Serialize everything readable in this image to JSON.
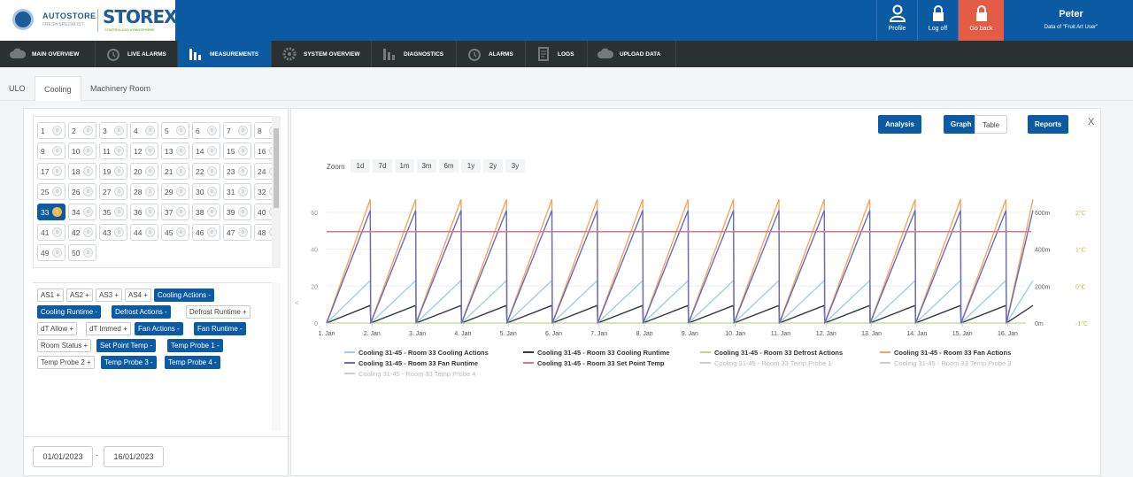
{
  "header": {
    "brand1": "AUTOSTORE",
    "brand1_sub": "FRESH SPEZIALIST",
    "brand2": "STOREX",
    "brand2_sub": "CONTROLLED ATMOSPHERE",
    "buttons": {
      "profile": "Profile",
      "logoff": "Log off",
      "goback": "Go back"
    },
    "user_name": "Peter",
    "user_data": "Data of \"Fruit Art User\"",
    "colors": {
      "primary": "#0b5aa2",
      "goback": "#e45c45",
      "nav": "#2b3132"
    }
  },
  "nav": {
    "items": [
      {
        "label": "MAIN OVERVIEW",
        "icon": "cloud-icon"
      },
      {
        "label": "LIVE ALARMS",
        "icon": "alarm-clock-icon"
      },
      {
        "label": "MEASUREMENTS",
        "icon": "bar-chart-icon",
        "active": true
      },
      {
        "label": "SYSTEM OVERVIEW",
        "icon": "gear-icon"
      },
      {
        "label": "DIAGNOSTICS",
        "icon": "bar-chart-icon"
      },
      {
        "label": "ALARMS",
        "icon": "alarm-clock-icon"
      },
      {
        "label": "LOGS",
        "icon": "document-icon"
      },
      {
        "label": "UPLOAD DATA",
        "icon": "cloud-upload-icon"
      }
    ]
  },
  "tabs": {
    "t0": "ULO",
    "t1": "Cooling",
    "t2": "Machinery Room",
    "active": "Cooling"
  },
  "rooms": {
    "visible": [
      "1",
      "2",
      "3",
      "4",
      "5",
      "6",
      "7",
      "8",
      "9",
      "10",
      "11",
      "12",
      "13",
      "14",
      "15",
      "16",
      "17",
      "18",
      "19",
      "20",
      "21",
      "22",
      "23",
      "24",
      "25",
      "26",
      "27",
      "28",
      "29",
      "30",
      "31",
      "32",
      "33",
      "34",
      "35",
      "36",
      "37",
      "38",
      "39",
      "40",
      "41",
      "42",
      "43",
      "44",
      "45",
      "46",
      "47",
      "48",
      "49",
      "50"
    ],
    "selected": "33",
    "indicator_text": "0"
  },
  "channels": [
    {
      "label": "AS1 +",
      "on": false
    },
    {
      "label": "AS2 +",
      "on": false
    },
    {
      "label": "AS3 +",
      "on": false
    },
    {
      "label": "AS4 +",
      "on": false
    },
    {
      "label": "Cooling Actions -",
      "on": true
    },
    {
      "label": "Cooling Runtime -",
      "on": true
    },
    {
      "label": "Defrost Actions -",
      "on": true
    },
    {
      "label": "Defrost Runtime +",
      "on": false
    },
    {
      "label": "dT Allow +",
      "on": false
    },
    {
      "label": "dT Immed +",
      "on": false
    },
    {
      "label": "Fan Actions -",
      "on": true
    },
    {
      "label": "Fan Runtime -",
      "on": true
    },
    {
      "label": "Room Status +",
      "on": false
    },
    {
      "label": "Set Point Temp -",
      "on": true
    },
    {
      "label": "Temp Probe 1 -",
      "on": true
    },
    {
      "label": "Temp Probe 2 +",
      "on": false
    },
    {
      "label": "Temp Probe 3 -",
      "on": true
    },
    {
      "label": "Temp Probe 4 -",
      "on": true
    }
  ],
  "dates": {
    "from": "01/01/2023",
    "sep": "-",
    "to": "16/01/2023"
  },
  "chart_controls": {
    "analysis": "Analysis",
    "graph": "Graph",
    "table": "Table",
    "reports": "Reports",
    "close": "X",
    "zoom_label": "Zoom",
    "zoom_options": [
      "1d",
      "7d",
      "1m",
      "3m",
      "6m",
      "1y",
      "2y",
      "3y"
    ],
    "collapse_arrow": "<"
  },
  "chart_data": {
    "type": "line",
    "x_labels": [
      "1. Jan",
      "2. Jan",
      "3. Jan",
      "4. Jan",
      "5. Jan",
      "6. Jan",
      "7. Jan",
      "8. Jan",
      "9. Jan",
      "10. Jan",
      "11. Jan",
      "12. Jan",
      "13. Jan",
      "14. Jan",
      "15. Jan",
      "16. Jan"
    ],
    "y_left": {
      "ticks": [
        "0",
        "20",
        "40",
        "60"
      ],
      "range": [
        0,
        70
      ]
    },
    "y_right_runtime": {
      "ticks": [
        "0m",
        "200m",
        "400m",
        "600m"
      ],
      "range": [
        0,
        700
      ]
    },
    "y_right_temp": {
      "ticks": [
        "-1°C",
        "0°C",
        "1°C",
        "2°C"
      ],
      "range": [
        -1,
        2.5
      ]
    },
    "cycle_days": 1,
    "series": [
      {
        "name": "Cooling 31-45 - Room 33 Cooling Actions",
        "color": "#9fd0e6",
        "peak": 23,
        "axis": "left",
        "visible": true
      },
      {
        "name": "Cooling 31-45 - Room 33 Cooling Runtime",
        "color": "#333a40",
        "peak": 95,
        "axis": "right_runtime",
        "visible": true
      },
      {
        "name": "Cooling 31-45 - Room 33 Defrost Actions",
        "color": "#b8d98a",
        "peak": 0,
        "axis": "left",
        "visible": true
      },
      {
        "name": "Cooling 31-45 - Room 33 Fan Actions",
        "color": "#f0a860",
        "peak": 67,
        "axis": "left",
        "visible": true
      },
      {
        "name": "Cooling 31-45 - Room 33 Fan Runtime",
        "color": "#6a6cc0",
        "peak": 61,
        "axis": "left",
        "visible": true
      },
      {
        "name": "Cooling 31-45 - Room 33 Set Point Temp",
        "color": "#e0728a",
        "constant": 49.5,
        "axis": "left",
        "visible": true
      },
      {
        "name": "Cooling 31-45 - Room 33 Temp Probe 1",
        "color": "#bbbbbb",
        "visible": false
      },
      {
        "name": "Cooling 31-45 - Room 33 Temp Probe 3",
        "color": "#bbbbbb",
        "visible": false
      },
      {
        "name": "Cooling 31-45 - Room 33 Temp Probe 4",
        "color": "#bbbbbb",
        "visible": false
      }
    ]
  }
}
